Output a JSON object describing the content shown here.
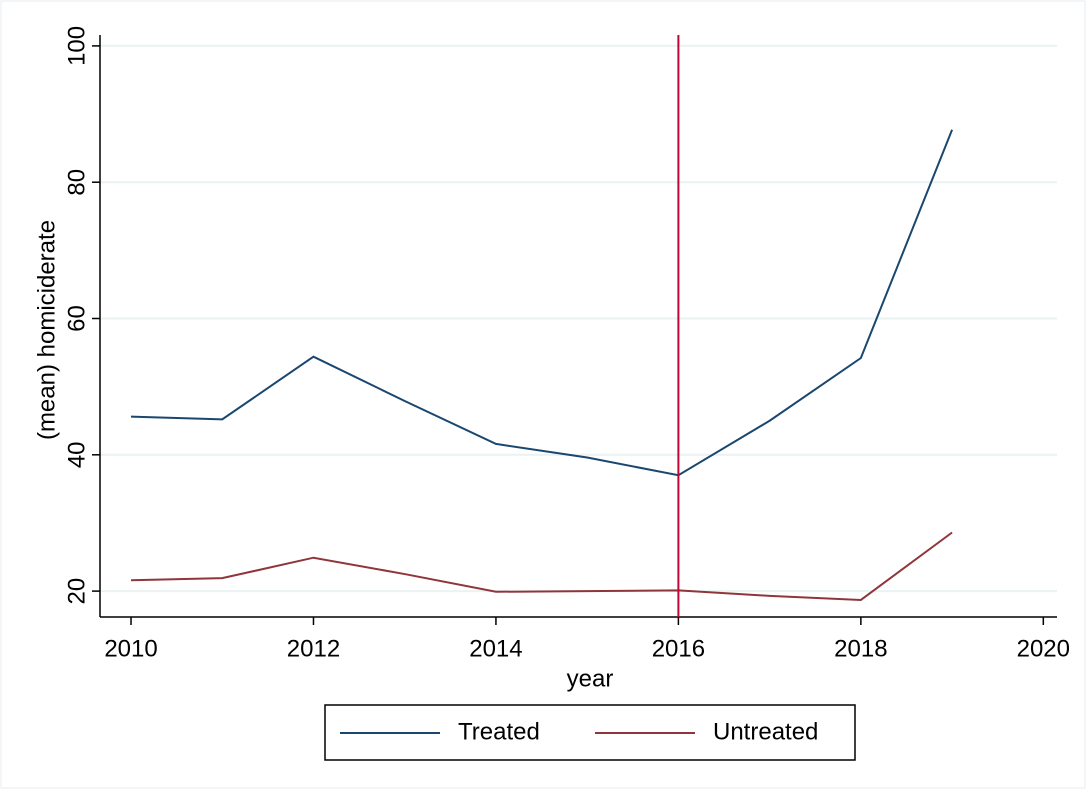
{
  "chart_data": {
    "type": "line",
    "x_label": "year",
    "y_label": "(mean) homiciderate",
    "x": [
      2010,
      2011,
      2012,
      2013,
      2014,
      2015,
      2016,
      2017,
      2018,
      2019
    ],
    "series": [
      {
        "name": "Treated",
        "color": "#1a476f",
        "values": [
          45.6,
          45.2,
          54.4,
          47.9,
          41.6,
          39.6,
          37.0,
          45.0,
          54.2,
          87.7
        ]
      },
      {
        "name": "Untreated",
        "color": "#90353b",
        "values": [
          21.6,
          21.9,
          24.9,
          22.5,
          19.9,
          20.0,
          20.1,
          19.3,
          18.7,
          28.6
        ]
      }
    ],
    "xlim": [
      2009.66,
      2020.15
    ],
    "xticks": [
      2010,
      2012,
      2014,
      2016,
      2018,
      2020
    ],
    "ylim": [
      16.2,
      101.6
    ],
    "yticks": [
      20,
      40,
      60,
      80,
      100
    ],
    "vline": {
      "x": 2016,
      "color": "#c10534"
    },
    "grid": true,
    "legend": "bottom"
  }
}
